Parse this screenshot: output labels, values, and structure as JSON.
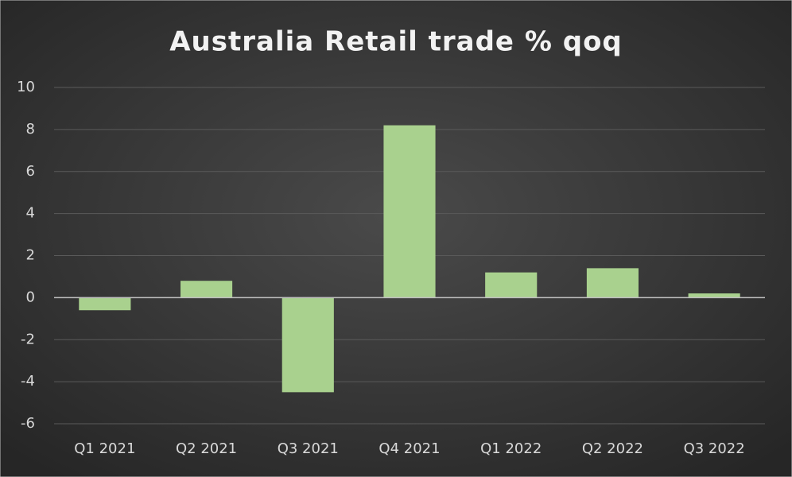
{
  "chart_data": {
    "type": "bar",
    "title": "Australia Retail trade % qoq",
    "categories": [
      "Q1 2021",
      "Q2 2021",
      "Q3 2021",
      "Q4 2021",
      "Q1 2022",
      "Q2 2022",
      "Q3 2022"
    ],
    "values": [
      -0.6,
      0.8,
      -4.5,
      8.2,
      1.2,
      1.4,
      0.2
    ],
    "color": "#a9d18e",
    "ylim": [
      -6,
      10
    ],
    "yticks": [
      -6,
      -4,
      -2,
      0,
      2,
      4,
      6,
      8,
      10
    ],
    "grid": true
  }
}
